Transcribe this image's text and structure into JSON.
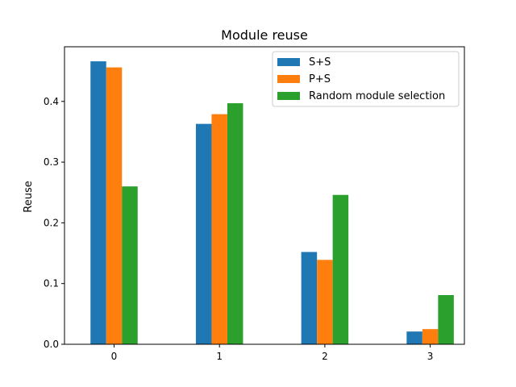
{
  "chart_data": {
    "type": "bar",
    "title": "Module reuse",
    "xlabel": "",
    "ylabel": "Reuse",
    "categories": [
      "0",
      "1",
      "2",
      "3"
    ],
    "series": [
      {
        "name": "S+S",
        "color": "#1f77b4",
        "values": [
          0.466,
          0.363,
          0.152,
          0.021
        ]
      },
      {
        "name": "P+S",
        "color": "#ff7f0e",
        "values": [
          0.456,
          0.379,
          0.139,
          0.025
        ]
      },
      {
        "name": "Random module selection",
        "color": "#2ca02c",
        "values": [
          0.26,
          0.397,
          0.246,
          0.081
        ]
      }
    ],
    "ylim": [
      0,
      0.49
    ],
    "yticks": [
      "0.0",
      "0.1",
      "0.2",
      "0.3",
      "0.4"
    ],
    "grid": false,
    "legend_position": "top-right"
  }
}
